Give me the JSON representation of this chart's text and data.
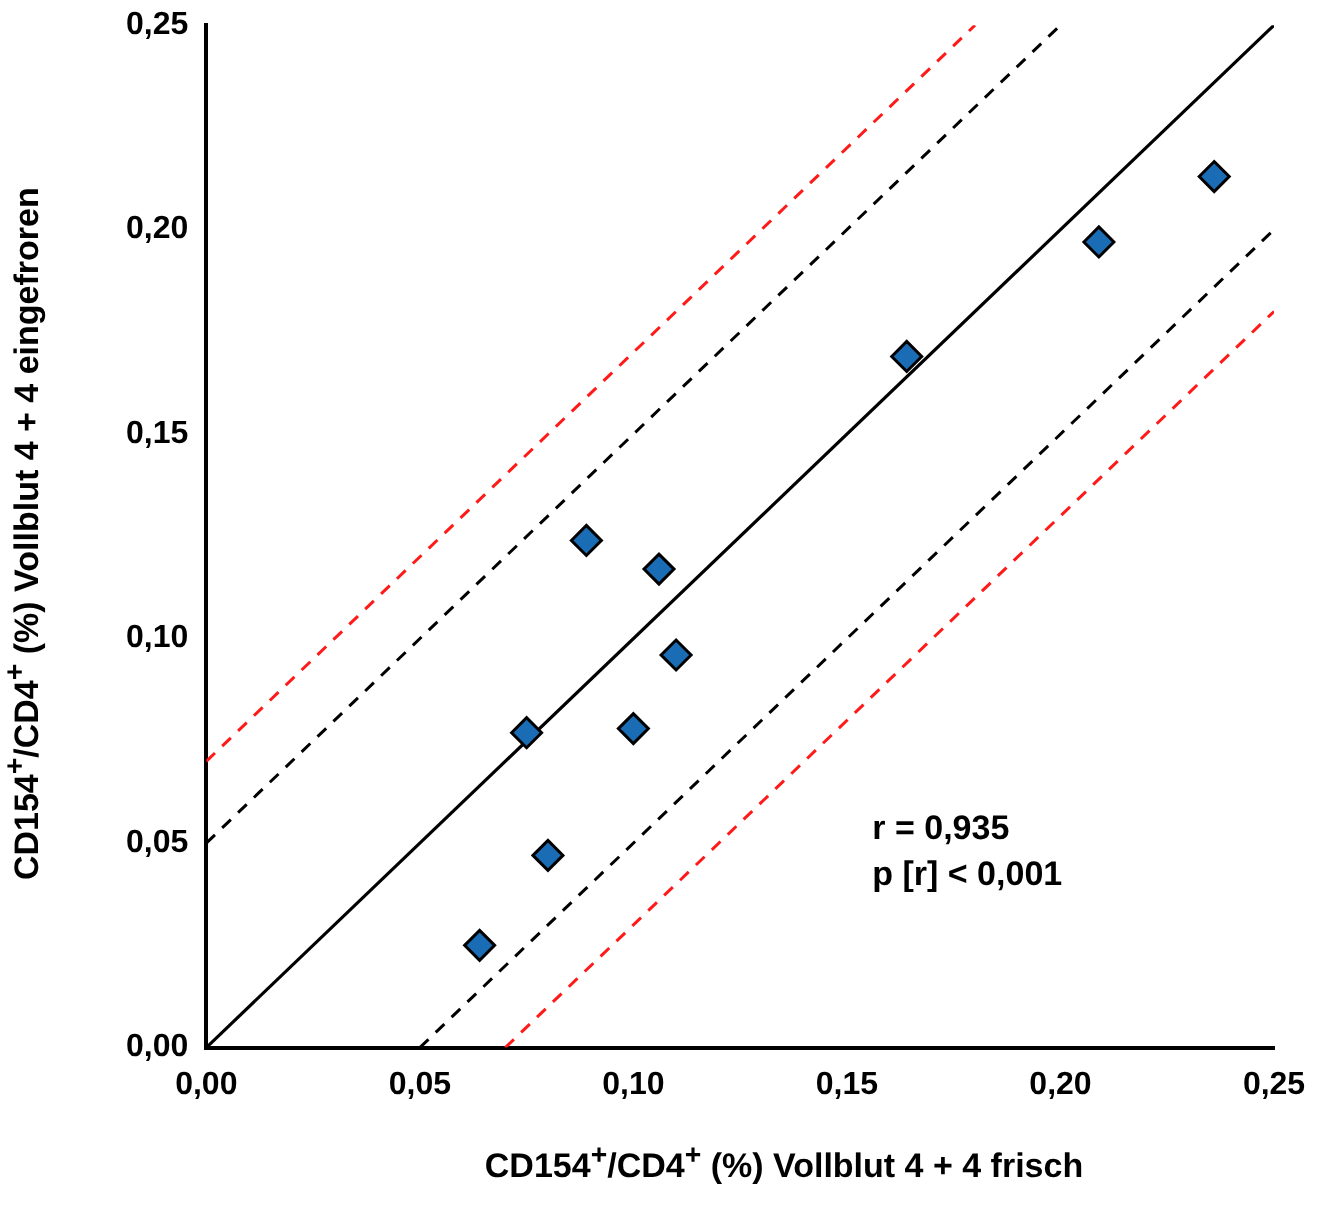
{
  "chart_data": {
    "type": "scatter",
    "xlabel": "CD154$^{+}$/CD4$^{+}$ (%) Vollblut 4 + 4 frisch",
    "ylabel": "CD154$^{+}$/CD4$^{+}$ (%) Vollblut 4 + 4 eingefroren",
    "xlim": [
      0,
      0.25
    ],
    "ylim": [
      0,
      0.25
    ],
    "xticks": [
      {
        "value": 0,
        "label": "0,00"
      },
      {
        "value": 0.05,
        "label": "0,05"
      },
      {
        "value": 0.1,
        "label": "0,10"
      },
      {
        "value": 0.15,
        "label": "0,15"
      },
      {
        "value": 0.2,
        "label": "0,20"
      },
      {
        "value": 0.25,
        "label": "0,25"
      }
    ],
    "yticks": [
      {
        "value": 0,
        "label": "0,00"
      },
      {
        "value": 0.05,
        "label": "0,05"
      },
      {
        "value": 0.1,
        "label": "0,10"
      },
      {
        "value": 0.15,
        "label": "0,15"
      },
      {
        "value": 0.2,
        "label": "0,20"
      },
      {
        "value": 0.25,
        "label": "0,25"
      }
    ],
    "grid": false,
    "legend": false,
    "annotations": [
      "r = 0,935",
      "p [r] < 0,001"
    ],
    "series": [
      {
        "marker": "diamond",
        "color": "#1a6db5",
        "x": [
          0.089,
          0.106,
          0.11,
          0.075,
          0.1,
          0.08,
          0.064,
          0.236,
          0.209,
          0.164
        ],
        "values": [
          0.124,
          0.117,
          0.096,
          0.077,
          0.078,
          0.047,
          0.025,
          0.213,
          0.197,
          0.169
        ]
      },
      {
        "type": "line",
        "marker": "none",
        "line_style": "solid",
        "color": "#000000",
        "x": [
          0,
          0.25
        ],
        "values": [
          0,
          0.25
        ]
      },
      {
        "type": "line",
        "marker": "none",
        "line_style": "dashed",
        "color": "#000000",
        "x": [
          0,
          0.2
        ],
        "values": [
          0.05,
          0.25
        ]
      },
      {
        "type": "line",
        "marker": "none",
        "line_style": "dashed",
        "color": "#000000",
        "x": [
          0.05,
          0.25
        ],
        "values": [
          0,
          0.2
        ]
      },
      {
        "type": "line",
        "marker": "none",
        "line_style": "dashed",
        "color": "#ff1a1a",
        "x": [
          0,
          0.18
        ],
        "values": [
          0.07,
          0.25
        ]
      },
      {
        "type": "line",
        "marker": "none",
        "line_style": "dashed",
        "color": "#ff1a1a",
        "x": [
          0.07,
          0.25
        ],
        "values": [
          0,
          0.18
        ]
      }
    ]
  }
}
